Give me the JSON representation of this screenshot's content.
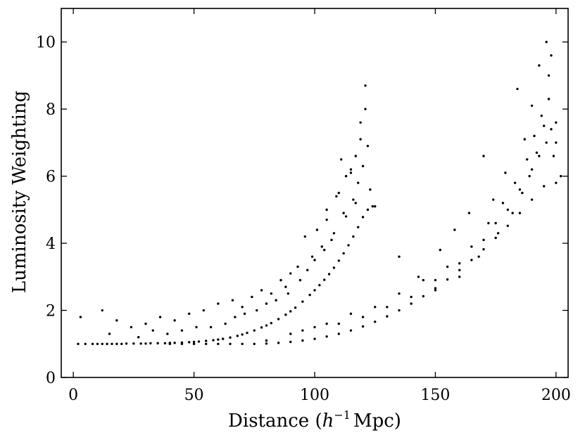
{
  "chart_data": {
    "type": "scatter",
    "title": "",
    "xlabel": "Distance (",
    "xlabel_math": "h",
    "xlabel_sup": "−1",
    "xlabel_unit": "Mpc)",
    "ylabel": "Luminosity Weighting",
    "xlim": [
      -5,
      205
    ],
    "ylim": [
      0,
      11
    ],
    "xticks": [
      0,
      50,
      100,
      150,
      200
    ],
    "yticks": [
      0,
      2,
      4,
      6,
      8,
      10
    ],
    "xtick_labels": [
      "0",
      "50",
      "100",
      "150",
      "200"
    ],
    "ytick_labels": [
      "0",
      "2",
      "4",
      "6",
      "8",
      "10"
    ],
    "grid": false,
    "legend": "none",
    "marker_color": "#000000",
    "series": [
      {
        "name": "",
        "x": [
          2,
          3,
          5,
          8,
          10,
          12,
          14,
          16,
          18,
          20,
          22,
          25,
          28,
          30,
          32,
          35,
          38,
          40,
          42,
          45,
          48,
          50,
          52,
          55,
          58,
          60,
          62,
          65,
          68,
          70,
          72,
          75,
          78,
          80,
          82,
          85,
          88,
          90,
          92,
          95,
          98,
          100,
          102,
          104,
          106,
          108,
          110,
          112,
          114,
          116,
          118,
          120,
          122,
          124,
          125,
          12,
          18,
          24,
          30,
          36,
          42,
          48,
          54,
          60,
          66,
          70,
          74,
          78,
          82,
          86,
          88,
          90,
          93,
          96,
          99,
          101,
          103,
          105,
          107,
          109,
          111,
          113,
          115,
          117,
          119,
          121,
          123,
          15,
          27,
          33,
          39,
          45,
          51,
          57,
          63,
          67,
          71,
          76,
          80,
          84,
          89,
          94,
          97,
          100,
          104,
          108,
          112,
          116,
          118,
          120,
          122,
          105,
          110,
          115,
          119,
          121,
          113,
          117
        ],
        "y": [
          1.0,
          1.8,
          1.0,
          1.0,
          1.0,
          1.0,
          1.0,
          1.0,
          1.0,
          1.0,
          1.01,
          1.01,
          1.01,
          1.01,
          1.02,
          1.02,
          1.02,
          1.03,
          1.03,
          1.04,
          1.05,
          1.06,
          1.07,
          1.09,
          1.11,
          1.13,
          1.15,
          1.19,
          1.24,
          1.28,
          1.33,
          1.4,
          1.49,
          1.55,
          1.62,
          1.74,
          1.87,
          1.97,
          2.08,
          2.26,
          2.46,
          2.6,
          2.75,
          2.91,
          3.08,
          3.27,
          3.48,
          3.7,
          3.94,
          4.2,
          4.48,
          4.78,
          5.0,
          5.1,
          5.1,
          2.0,
          1.7,
          1.5,
          1.6,
          1.8,
          1.7,
          1.9,
          2.0,
          2.2,
          2.3,
          2.1,
          2.4,
          2.6,
          2.5,
          2.9,
          2.7,
          3.1,
          3.3,
          4.2,
          3.6,
          4.4,
          3.9,
          4.7,
          4.1,
          5.4,
          6.5,
          4.8,
          6.1,
          5.2,
          7.1,
          8.0,
          5.6,
          1.3,
          1.2,
          1.4,
          1.3,
          1.4,
          1.5,
          1.5,
          1.6,
          1.8,
          1.9,
          2.0,
          2.2,
          2.3,
          2.5,
          2.9,
          3.2,
          3.5,
          3.8,
          4.3,
          4.9,
          5.3,
          5.8,
          6.3,
          6.9,
          5.0,
          5.5,
          6.2,
          7.6,
          8.7,
          6.0,
          6.6
        ]
      },
      {
        "name": "",
        "x": [
          40,
          45,
          50,
          55,
          60,
          65,
          70,
          75,
          80,
          85,
          90,
          95,
          100,
          105,
          110,
          115,
          120,
          125,
          130,
          135,
          140,
          145,
          150,
          155,
          160,
          165,
          170,
          175,
          180,
          185,
          190,
          195,
          200,
          80,
          90,
          100,
          110,
          120,
          130,
          140,
          150,
          160,
          170,
          175,
          180,
          185,
          190,
          193,
          196,
          198,
          200,
          95,
          105,
          115,
          125,
          135,
          145,
          155,
          165,
          172,
          178,
          183,
          188,
          191,
          194,
          197,
          199,
          150,
          160,
          168,
          176,
          182,
          186,
          189,
          192,
          195,
          197,
          135,
          143,
          152,
          158,
          164,
          170,
          174,
          179,
          184,
          187,
          190,
          193,
          196,
          198,
          200,
          202
        ],
        "y": [
          1.0,
          1.0,
          1.0,
          1.0,
          1.0,
          1.0,
          1.0,
          1.0,
          1.01,
          1.03,
          1.06,
          1.1,
          1.15,
          1.22,
          1.3,
          1.4,
          1.52,
          1.66,
          1.82,
          2.0,
          2.2,
          2.42,
          2.66,
          2.92,
          3.2,
          3.5,
          3.82,
          4.16,
          4.52,
          4.9,
          5.3,
          5.7,
          5.8,
          1.1,
          1.3,
          1.5,
          1.6,
          1.8,
          2.1,
          2.4,
          2.9,
          3.4,
          4.1,
          4.6,
          5.0,
          5.6,
          6.2,
          6.6,
          7.0,
          7.4,
          7.0,
          1.4,
          1.6,
          1.9,
          2.1,
          2.5,
          2.9,
          3.3,
          3.9,
          4.6,
          5.2,
          5.8,
          6.5,
          7.2,
          7.8,
          8.3,
          6.6,
          2.6,
          3.0,
          3.6,
          4.3,
          4.9,
          5.5,
          6.0,
          6.7,
          7.5,
          9.0,
          3.6,
          3.0,
          3.8,
          4.4,
          4.9,
          6.6,
          5.3,
          6.1,
          8.6,
          7.1,
          8.1,
          9.3,
          10.0,
          9.6,
          7.6,
          6.0
        ]
      }
    ]
  }
}
